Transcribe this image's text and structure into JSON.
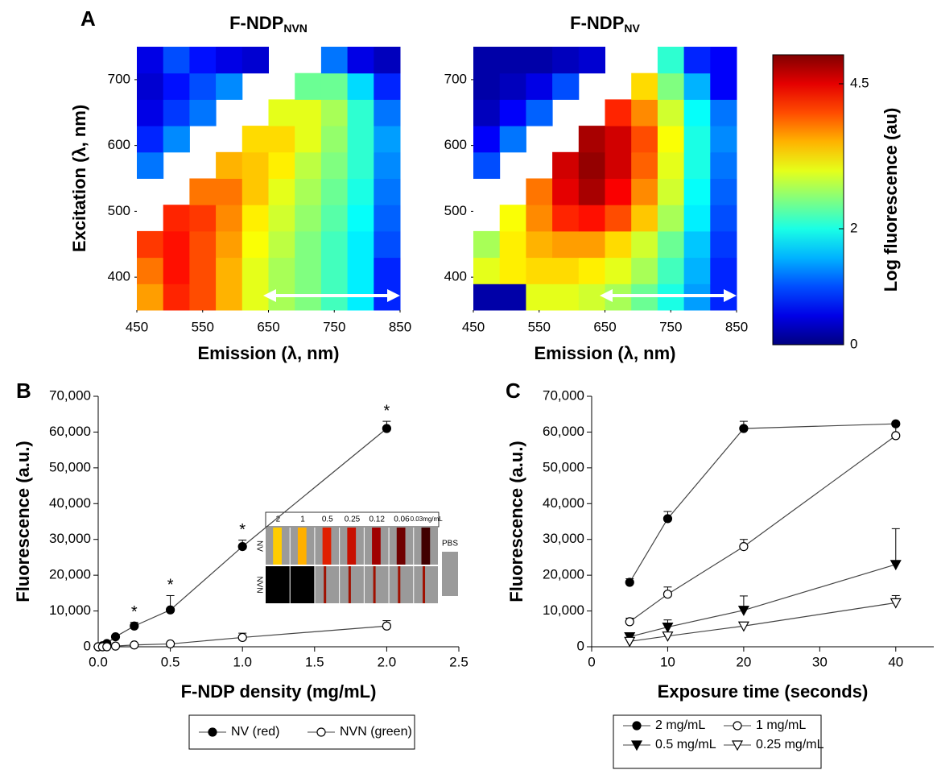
{
  "chart_data": [
    {
      "type": "heatmap",
      "panel": "A",
      "title": "F-NDP",
      "title_sub": "NVN",
      "colormap": "jet",
      "zlim": [
        0,
        5
      ],
      "x_bins": [
        450,
        490,
        530,
        570,
        610,
        650,
        690,
        730,
        770,
        810,
        850
      ],
      "y_bins": [
        350,
        390,
        430,
        470,
        510,
        550,
        590,
        630,
        670,
        710,
        750
      ],
      "z": [
        [
          3.6,
          4.2,
          4.0,
          3.5,
          3.0,
          2.7,
          2.5,
          2.2,
          1.8,
          0.8
        ],
        [
          3.8,
          4.3,
          4.0,
          3.5,
          3.0,
          2.7,
          2.5,
          2.2,
          1.8,
          0.8
        ],
        [
          4.1,
          4.3,
          4.0,
          3.6,
          3.1,
          2.8,
          2.5,
          2.2,
          1.8,
          1.0
        ],
        [
          null,
          4.2,
          4.1,
          3.7,
          3.2,
          2.9,
          2.6,
          2.3,
          1.9,
          1.1
        ],
        [
          null,
          null,
          3.8,
          3.8,
          3.4,
          3.0,
          2.7,
          2.4,
          2.0,
          1.2
        ],
        [
          1.2,
          null,
          null,
          3.5,
          3.4,
          3.2,
          2.8,
          2.5,
          2.1,
          1.3
        ],
        [
          0.8,
          1.3,
          null,
          null,
          3.3,
          3.3,
          3.0,
          2.6,
          2.1,
          1.4
        ],
        [
          0.5,
          0.9,
          1.2,
          null,
          null,
          3.0,
          3.0,
          2.7,
          2.1,
          1.2
        ],
        [
          0.4,
          0.7,
          1.0,
          1.3,
          null,
          null,
          2.4,
          2.4,
          1.7,
          0.8
        ],
        [
          0.5,
          1.0,
          0.7,
          0.5,
          0.4,
          null,
          null,
          1.2,
          0.5,
          0.3
        ]
      ],
      "xlim": [
        450,
        850
      ],
      "ylim": [
        350,
        750
      ],
      "xticks": [
        450,
        550,
        650,
        750,
        850
      ],
      "yticks": [
        400,
        500,
        600,
        700
      ],
      "xlabel": "Emission (λ, nm)",
      "ylabel": "Excitation (λ, nm)"
    },
    {
      "type": "heatmap",
      "title": "F-NDP",
      "title_sub": "NV",
      "colormap": "jet",
      "zlim": [
        0,
        5
      ],
      "x_bins": [
        450,
        490,
        530,
        570,
        610,
        650,
        690,
        730,
        770,
        810,
        850
      ],
      "y_bins": [
        350,
        390,
        430,
        470,
        510,
        550,
        590,
        630,
        670,
        710,
        750
      ],
      "z": [
        [
          0.2,
          0.2,
          3.0,
          3.0,
          2.9,
          2.7,
          2.4,
          2.0,
          1.4,
          0.8
        ],
        [
          3.0,
          3.2,
          3.3,
          3.3,
          3.2,
          3.0,
          2.7,
          2.2,
          1.5,
          0.8
        ],
        [
          2.7,
          3.2,
          3.5,
          3.6,
          3.6,
          3.3,
          2.9,
          2.4,
          1.6,
          0.9
        ],
        [
          null,
          3.1,
          3.7,
          4.2,
          4.3,
          4.0,
          3.4,
          2.7,
          1.8,
          1.0
        ],
        [
          null,
          null,
          3.8,
          4.5,
          4.8,
          4.4,
          3.7,
          2.9,
          1.9,
          1.1
        ],
        [
          1.0,
          null,
          null,
          4.6,
          4.9,
          4.6,
          3.9,
          3.0,
          2.0,
          1.2
        ],
        [
          0.6,
          1.2,
          null,
          null,
          4.8,
          4.6,
          4.0,
          3.1,
          2.0,
          1.3
        ],
        [
          0.3,
          0.6,
          1.1,
          null,
          null,
          4.2,
          3.7,
          2.9,
          1.9,
          1.2
        ],
        [
          0.2,
          0.3,
          0.5,
          1.0,
          null,
          null,
          3.3,
          2.5,
          1.5,
          0.6
        ],
        [
          0.2,
          0.2,
          0.2,
          0.3,
          0.4,
          null,
          null,
          2.1,
          0.8,
          0.6
        ]
      ],
      "xlim": [
        450,
        850
      ],
      "ylim": [
        350,
        750
      ],
      "xticks": [
        450,
        550,
        650,
        750,
        850
      ],
      "yticks": [
        400,
        500,
        600,
        700
      ],
      "xlabel": "Emission (λ, nm)"
    },
    {
      "type": "colorbar",
      "colormap": "jet",
      "zlim": [
        0,
        5
      ],
      "zticks": [
        0,
        2,
        4.5
      ],
      "label": "Log fluorescence (au)"
    },
    {
      "type": "line",
      "panel": "B",
      "xlabel": "F-NDP density (mg/mL)",
      "ylabel": "Fluorescence (a.u.)",
      "x": [
        0,
        0.03,
        0.06,
        0.12,
        0.25,
        0.5,
        1,
        2
      ],
      "xlim": [
        0,
        2.5
      ],
      "xticks": [
        {
          "value": 0,
          "label": "0.0"
        },
        0.5,
        {
          "value": 1,
          "label": "1.0"
        },
        1.5,
        {
          "value": 2,
          "label": "2.0"
        },
        2.5
      ],
      "ylim": [
        0,
        70000
      ],
      "yticks": [
        0,
        {
          "value": 10000,
          "label": "10,000"
        },
        {
          "value": 20000,
          "label": "20,000"
        },
        {
          "value": 30000,
          "label": "30,000"
        },
        {
          "value": 40000,
          "label": "40,000"
        },
        {
          "value": 50000,
          "label": "50,000"
        },
        {
          "value": 60000,
          "label": "60,000"
        },
        {
          "value": 70000,
          "label": "70,000"
        }
      ],
      "series": [
        {
          "name": "NV (red)",
          "marker": "circle",
          "marker_fill": "#000",
          "color": "#444",
          "values": [
            0,
            300,
            900,
            2800,
            5800,
            10300,
            28000,
            61000
          ],
          "errors": [
            0,
            0,
            0,
            300,
            1000,
            4000,
            1800,
            2000
          ]
        },
        {
          "name": "NVN (green)",
          "marker": "circle",
          "marker_fill": "#fff",
          "color": "#444",
          "values": [
            0,
            0,
            0,
            200,
            500,
            800,
            2600,
            5800
          ],
          "errors": [
            0,
            0,
            0,
            0,
            0,
            300,
            1200,
            1500
          ]
        }
      ],
      "annotations": [
        {
          "x": 0.25,
          "text": "*"
        },
        {
          "x": 0.5,
          "text": "*"
        },
        {
          "x": 1,
          "text": "*"
        },
        {
          "x": 2,
          "text": "*"
        }
      ],
      "inset": {
        "column_labels": [
          "2",
          "1",
          "0.5",
          "0.25",
          "0.12",
          "0.06",
          "0.03mg/mL"
        ],
        "row_labels": [
          "NV",
          "NVN"
        ],
        "side_label": "PBS"
      }
    },
    {
      "type": "line",
      "panel": "C",
      "xlabel": "Exposure time (seconds)",
      "ylabel": "Fluorescence (a.u.)",
      "x": [
        5,
        10,
        20,
        40
      ],
      "xlim": [
        0,
        45
      ],
      "xticks": [
        0,
        10,
        20,
        30,
        40
      ],
      "ylim": [
        0,
        70000
      ],
      "yticks": [
        0,
        {
          "value": 10000,
          "label": "10,000"
        },
        {
          "value": 20000,
          "label": "20,000"
        },
        {
          "value": 30000,
          "label": "30,000"
        },
        {
          "value": 40000,
          "label": "40,000"
        },
        {
          "value": 50000,
          "label": "50,000"
        },
        {
          "value": 60000,
          "label": "60,000"
        },
        {
          "value": 70000,
          "label": "70,000"
        }
      ],
      "series": [
        {
          "name": "2 mg/mL",
          "marker": "circle",
          "marker_fill": "#000",
          "color": "#444",
          "values": [
            18000,
            35800,
            61000,
            62300
          ],
          "errors": [
            1000,
            2000,
            2000,
            500
          ]
        },
        {
          "name": "1 mg/mL",
          "marker": "circle",
          "marker_fill": "#fff",
          "color": "#444",
          "values": [
            7000,
            14700,
            28000,
            59000
          ],
          "errors": [
            1000,
            2000,
            2000,
            3500
          ]
        },
        {
          "name": "0.5 mg/mL",
          "marker": "triangle-down",
          "marker_fill": "#000",
          "color": "#444",
          "values": [
            2800,
            5500,
            10200,
            23000
          ],
          "errors": [
            800,
            2000,
            4000,
            10000
          ]
        },
        {
          "name": "0.25 mg/mL",
          "marker": "triangle-down",
          "marker_fill": "#fff",
          "color": "#444",
          "values": [
            1500,
            3000,
            5800,
            12300
          ],
          "errors": [
            500,
            1000,
            800,
            2000
          ]
        }
      ]
    }
  ]
}
